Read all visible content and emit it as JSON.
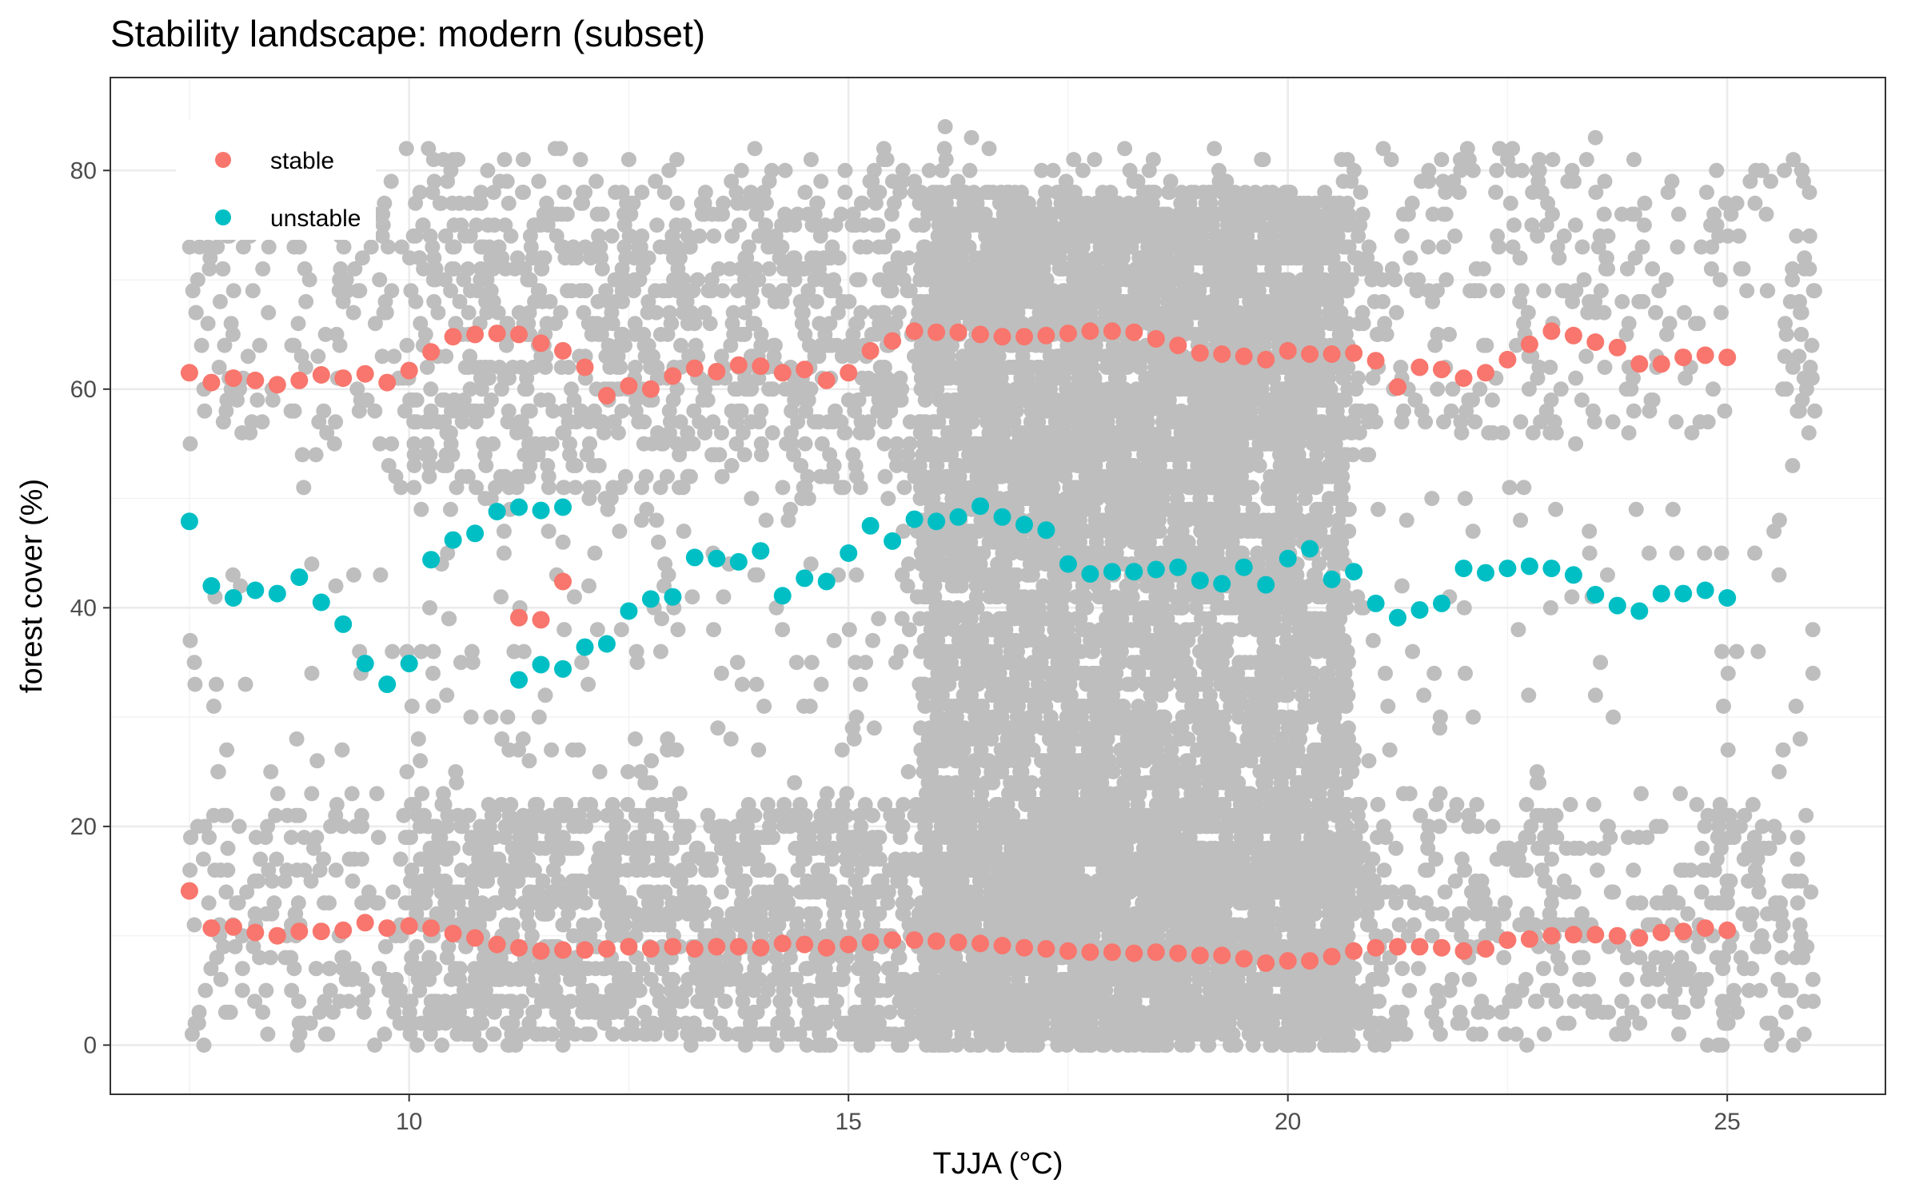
{
  "chart_data": {
    "type": "scatter",
    "title": "Stability landscape: modern (subset)",
    "xlabel": "TJJA (°C)",
    "ylabel": "forest cover (%)",
    "xlim": [
      6.6,
      26.8
    ],
    "ylim": [
      -4.5,
      88.5
    ],
    "x_ticks": [
      10,
      15,
      20,
      25
    ],
    "y_ticks": [
      0,
      20,
      40,
      60,
      80
    ],
    "grid": true,
    "legend_position": "top-left inside",
    "background_points": {
      "description_color": "#bebebe",
      "x_range": [
        7.5,
        26.0
      ],
      "y_range": [
        0,
        84
      ],
      "note": "dense cloud of grey observation points; densest between 15.8 and 20.7 °C"
    },
    "series": [
      {
        "name": "stable",
        "color": "#f8766d",
        "points": [
          [
            7.5,
            61.5
          ],
          [
            7.75,
            60.6
          ],
          [
            8.0,
            61.0
          ],
          [
            8.25,
            60.8
          ],
          [
            8.5,
            60.4
          ],
          [
            8.75,
            60.8
          ],
          [
            9.0,
            61.3
          ],
          [
            9.25,
            61.0
          ],
          [
            9.5,
            61.4
          ],
          [
            9.75,
            60.6
          ],
          [
            10.0,
            61.7
          ],
          [
            10.25,
            63.4
          ],
          [
            10.5,
            64.8
          ],
          [
            10.75,
            65.0
          ],
          [
            11.0,
            65.1
          ],
          [
            11.25,
            65.0
          ],
          [
            11.5,
            64.2
          ],
          [
            11.75,
            63.5
          ],
          [
            12.0,
            62.0
          ],
          [
            12.25,
            59.4
          ],
          [
            12.5,
            60.3
          ],
          [
            12.75,
            60.0
          ],
          [
            13.0,
            61.2
          ],
          [
            13.25,
            61.9
          ],
          [
            13.5,
            61.6
          ],
          [
            13.75,
            62.2
          ],
          [
            14.0,
            62.1
          ],
          [
            14.25,
            61.5
          ],
          [
            14.5,
            61.8
          ],
          [
            14.75,
            60.8
          ],
          [
            15.0,
            61.5
          ],
          [
            15.25,
            63.5
          ],
          [
            15.5,
            64.4
          ],
          [
            15.75,
            65.3
          ],
          [
            16.0,
            65.2
          ],
          [
            16.25,
            65.2
          ],
          [
            16.5,
            65.0
          ],
          [
            16.75,
            64.8
          ],
          [
            17.0,
            64.8
          ],
          [
            17.25,
            64.9
          ],
          [
            17.5,
            65.1
          ],
          [
            17.75,
            65.3
          ],
          [
            18.0,
            65.3
          ],
          [
            18.25,
            65.2
          ],
          [
            18.5,
            64.6
          ],
          [
            18.75,
            64.0
          ],
          [
            19.0,
            63.3
          ],
          [
            19.25,
            63.2
          ],
          [
            19.5,
            63.0
          ],
          [
            19.75,
            62.7
          ],
          [
            20.0,
            63.5
          ],
          [
            20.25,
            63.2
          ],
          [
            20.5,
            63.2
          ],
          [
            20.75,
            63.3
          ],
          [
            21.0,
            62.6
          ],
          [
            21.25,
            60.2
          ],
          [
            21.5,
            62.0
          ],
          [
            21.75,
            61.8
          ],
          [
            22.0,
            61.0
          ],
          [
            22.25,
            61.5
          ],
          [
            22.5,
            62.7
          ],
          [
            22.75,
            64.1
          ],
          [
            23.0,
            65.3
          ],
          [
            23.25,
            64.9
          ],
          [
            23.5,
            64.3
          ],
          [
            23.75,
            63.8
          ],
          [
            24.0,
            62.3
          ],
          [
            24.25,
            62.3
          ],
          [
            24.5,
            62.9
          ],
          [
            24.75,
            63.1
          ],
          [
            25.0,
            62.9
          ],
          [
            7.5,
            14.1
          ],
          [
            7.75,
            10.7
          ],
          [
            8.0,
            10.8
          ],
          [
            8.25,
            10.3
          ],
          [
            8.5,
            10.0
          ],
          [
            8.75,
            10.4
          ],
          [
            9.0,
            10.4
          ],
          [
            9.25,
            10.5
          ],
          [
            9.5,
            11.2
          ],
          [
            9.75,
            10.7
          ],
          [
            10.0,
            10.9
          ],
          [
            10.25,
            10.7
          ],
          [
            10.5,
            10.2
          ],
          [
            10.75,
            9.8
          ],
          [
            11.0,
            9.2
          ],
          [
            11.25,
            8.9
          ],
          [
            11.5,
            8.6
          ],
          [
            11.75,
            8.7
          ],
          [
            12.0,
            8.7
          ],
          [
            12.25,
            8.8
          ],
          [
            12.5,
            9.0
          ],
          [
            12.75,
            8.8
          ],
          [
            13.0,
            9.0
          ],
          [
            13.25,
            8.8
          ],
          [
            13.5,
            9.0
          ],
          [
            13.75,
            9.0
          ],
          [
            14.0,
            8.9
          ],
          [
            14.25,
            9.3
          ],
          [
            14.5,
            9.2
          ],
          [
            14.75,
            8.9
          ],
          [
            15.0,
            9.2
          ],
          [
            15.25,
            9.4
          ],
          [
            15.5,
            9.6
          ],
          [
            15.75,
            9.6
          ],
          [
            16.0,
            9.5
          ],
          [
            16.25,
            9.4
          ],
          [
            16.5,
            9.3
          ],
          [
            16.75,
            9.1
          ],
          [
            17.0,
            8.9
          ],
          [
            17.25,
            8.8
          ],
          [
            17.5,
            8.6
          ],
          [
            17.75,
            8.5
          ],
          [
            18.0,
            8.5
          ],
          [
            18.25,
            8.4
          ],
          [
            18.5,
            8.5
          ],
          [
            18.75,
            8.4
          ],
          [
            19.0,
            8.2
          ],
          [
            19.25,
            8.2
          ],
          [
            19.5,
            7.9
          ],
          [
            19.75,
            7.5
          ],
          [
            20.0,
            7.7
          ],
          [
            20.25,
            7.7
          ],
          [
            20.5,
            8.1
          ],
          [
            20.75,
            8.6
          ],
          [
            21.0,
            8.9
          ],
          [
            21.25,
            9.0
          ],
          [
            21.5,
            9.0
          ],
          [
            21.75,
            8.9
          ],
          [
            22.0,
            8.6
          ],
          [
            22.25,
            8.8
          ],
          [
            22.5,
            9.6
          ],
          [
            22.75,
            9.7
          ],
          [
            23.0,
            10.0
          ],
          [
            23.25,
            10.1
          ],
          [
            23.5,
            10.1
          ],
          [
            23.75,
            10.0
          ],
          [
            24.0,
            9.8
          ],
          [
            24.25,
            10.3
          ],
          [
            24.5,
            10.4
          ],
          [
            24.75,
            10.7
          ],
          [
            25.0,
            10.5
          ],
          [
            11.25,
            39.1
          ],
          [
            11.5,
            38.9
          ],
          [
            11.75,
            42.4
          ]
        ]
      },
      {
        "name": "unstable",
        "color": "#00bfc4",
        "points": [
          [
            7.5,
            47.9
          ],
          [
            7.75,
            42.0
          ],
          [
            8.0,
            40.9
          ],
          [
            8.25,
            41.6
          ],
          [
            8.5,
            41.3
          ],
          [
            8.75,
            42.8
          ],
          [
            9.0,
            40.5
          ],
          [
            9.25,
            38.5
          ],
          [
            9.5,
            34.9
          ],
          [
            9.75,
            33.0
          ],
          [
            10.0,
            34.9
          ],
          [
            10.25,
            44.4
          ],
          [
            10.5,
            46.2
          ],
          [
            10.75,
            46.8
          ],
          [
            11.0,
            48.8
          ],
          [
            11.25,
            49.2
          ],
          [
            11.5,
            48.9
          ],
          [
            11.75,
            49.2
          ],
          [
            11.25,
            33.4
          ],
          [
            11.5,
            34.8
          ],
          [
            11.75,
            34.4
          ],
          [
            12.0,
            36.4
          ],
          [
            12.25,
            36.7
          ],
          [
            12.5,
            39.7
          ],
          [
            12.75,
            40.8
          ],
          [
            13.0,
            41.0
          ],
          [
            13.25,
            44.6
          ],
          [
            13.5,
            44.5
          ],
          [
            13.75,
            44.2
          ],
          [
            14.0,
            45.2
          ],
          [
            14.25,
            41.1
          ],
          [
            14.5,
            42.7
          ],
          [
            14.75,
            42.4
          ],
          [
            15.0,
            45.0
          ],
          [
            15.25,
            47.5
          ],
          [
            15.5,
            46.1
          ],
          [
            15.75,
            48.1
          ],
          [
            16.0,
            47.9
          ],
          [
            16.25,
            48.3
          ],
          [
            16.5,
            49.3
          ],
          [
            16.75,
            48.3
          ],
          [
            17.0,
            47.6
          ],
          [
            17.25,
            47.1
          ],
          [
            17.5,
            44.0
          ],
          [
            17.75,
            43.1
          ],
          [
            18.0,
            43.3
          ],
          [
            18.25,
            43.3
          ],
          [
            18.5,
            43.5
          ],
          [
            18.75,
            43.7
          ],
          [
            19.0,
            42.5
          ],
          [
            19.25,
            42.2
          ],
          [
            19.5,
            43.7
          ],
          [
            19.75,
            42.1
          ],
          [
            20.0,
            44.5
          ],
          [
            20.25,
            45.4
          ],
          [
            20.5,
            42.6
          ],
          [
            20.75,
            43.3
          ],
          [
            21.0,
            40.4
          ],
          [
            21.25,
            39.1
          ],
          [
            21.5,
            39.8
          ],
          [
            21.75,
            40.4
          ],
          [
            22.0,
            43.6
          ],
          [
            22.25,
            43.2
          ],
          [
            22.5,
            43.6
          ],
          [
            22.75,
            43.8
          ],
          [
            23.0,
            43.6
          ],
          [
            23.25,
            43.0
          ],
          [
            23.5,
            41.2
          ],
          [
            23.75,
            40.2
          ],
          [
            24.0,
            39.7
          ],
          [
            24.25,
            41.3
          ],
          [
            24.5,
            41.3
          ],
          [
            24.75,
            41.6
          ],
          [
            25.0,
            40.9
          ]
        ]
      }
    ]
  },
  "legend": {
    "items": [
      {
        "label": "stable",
        "color": "#f8766d"
      },
      {
        "label": "unstable",
        "color": "#00bfc4"
      }
    ]
  }
}
